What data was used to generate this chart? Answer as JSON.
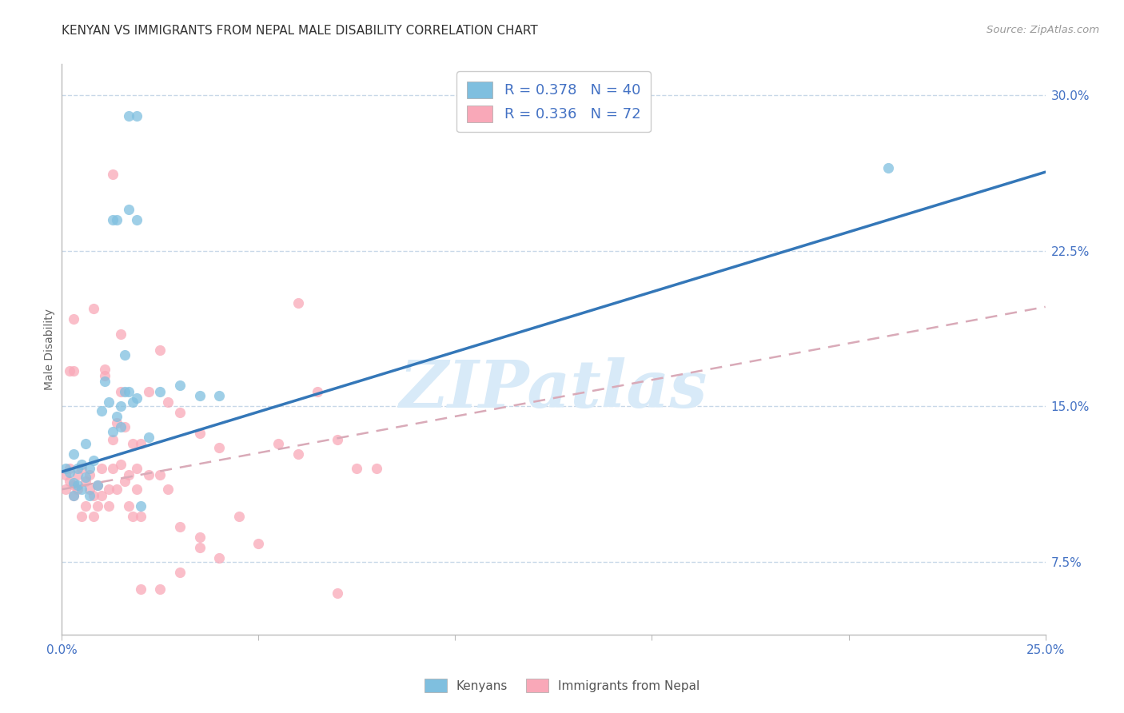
{
  "title": "KENYAN VS IMMIGRANTS FROM NEPAL MALE DISABILITY CORRELATION CHART",
  "source": "Source: ZipAtlas.com",
  "ylabel": "Male Disability",
  "xlim": [
    0.0,
    0.25
  ],
  "ylim": [
    0.04,
    0.315
  ],
  "xtick_vals": [
    0.0,
    0.05,
    0.1,
    0.15,
    0.2,
    0.25
  ],
  "xtick_labels": [
    "0.0%",
    "",
    "",
    "",
    "",
    "25.0%"
  ],
  "ytick_vals": [
    0.075,
    0.15,
    0.225,
    0.3
  ],
  "ytick_labels": [
    "7.5%",
    "15.0%",
    "22.5%",
    "30.0%"
  ],
  "legend_label_kenyan": "R = 0.378   N = 40",
  "legend_label_nepal": "R = 0.336   N = 72",
  "legend_items_bottom": [
    "Kenyans",
    "Immigrants from Nepal"
  ],
  "kenyan_scatter": [
    [
      0.001,
      0.12
    ],
    [
      0.002,
      0.118
    ],
    [
      0.003,
      0.113
    ],
    [
      0.003,
      0.127
    ],
    [
      0.004,
      0.112
    ],
    [
      0.004,
      0.12
    ],
    [
      0.005,
      0.11
    ],
    [
      0.005,
      0.122
    ],
    [
      0.006,
      0.116
    ],
    [
      0.006,
      0.132
    ],
    [
      0.007,
      0.12
    ],
    [
      0.007,
      0.107
    ],
    [
      0.008,
      0.124
    ],
    [
      0.009,
      0.112
    ],
    [
      0.01,
      0.148
    ],
    [
      0.011,
      0.162
    ],
    [
      0.012,
      0.152
    ],
    [
      0.013,
      0.138
    ],
    [
      0.014,
      0.145
    ],
    [
      0.015,
      0.15
    ],
    [
      0.016,
      0.157
    ],
    [
      0.017,
      0.157
    ],
    [
      0.018,
      0.152
    ],
    [
      0.019,
      0.154
    ],
    [
      0.02,
      0.102
    ],
    [
      0.025,
      0.157
    ],
    [
      0.03,
      0.16
    ],
    [
      0.035,
      0.155
    ],
    [
      0.04,
      0.155
    ],
    [
      0.017,
      0.245
    ],
    [
      0.019,
      0.24
    ],
    [
      0.016,
      0.175
    ],
    [
      0.013,
      0.24
    ],
    [
      0.014,
      0.24
    ],
    [
      0.015,
      0.14
    ],
    [
      0.022,
      0.135
    ],
    [
      0.017,
      0.29
    ],
    [
      0.019,
      0.29
    ],
    [
      0.21,
      0.265
    ],
    [
      0.003,
      0.107
    ]
  ],
  "nepal_scatter": [
    [
      0.001,
      0.11
    ],
    [
      0.001,
      0.117
    ],
    [
      0.002,
      0.114
    ],
    [
      0.002,
      0.12
    ],
    [
      0.003,
      0.107
    ],
    [
      0.003,
      0.112
    ],
    [
      0.004,
      0.11
    ],
    [
      0.004,
      0.117
    ],
    [
      0.005,
      0.12
    ],
    [
      0.005,
      0.097
    ],
    [
      0.006,
      0.102
    ],
    [
      0.006,
      0.114
    ],
    [
      0.007,
      0.11
    ],
    [
      0.007,
      0.117
    ],
    [
      0.008,
      0.097
    ],
    [
      0.008,
      0.107
    ],
    [
      0.009,
      0.102
    ],
    [
      0.009,
      0.112
    ],
    [
      0.01,
      0.12
    ],
    [
      0.01,
      0.107
    ],
    [
      0.011,
      0.165
    ],
    [
      0.011,
      0.168
    ],
    [
      0.012,
      0.11
    ],
    [
      0.012,
      0.102
    ],
    [
      0.013,
      0.134
    ],
    [
      0.013,
      0.12
    ],
    [
      0.014,
      0.142
    ],
    [
      0.014,
      0.11
    ],
    [
      0.015,
      0.157
    ],
    [
      0.015,
      0.122
    ],
    [
      0.016,
      0.14
    ],
    [
      0.016,
      0.114
    ],
    [
      0.017,
      0.117
    ],
    [
      0.017,
      0.102
    ],
    [
      0.018,
      0.132
    ],
    [
      0.018,
      0.097
    ],
    [
      0.019,
      0.12
    ],
    [
      0.019,
      0.11
    ],
    [
      0.02,
      0.132
    ],
    [
      0.02,
      0.097
    ],
    [
      0.022,
      0.157
    ],
    [
      0.022,
      0.117
    ],
    [
      0.025,
      0.177
    ],
    [
      0.025,
      0.117
    ],
    [
      0.027,
      0.152
    ],
    [
      0.027,
      0.11
    ],
    [
      0.03,
      0.147
    ],
    [
      0.03,
      0.092
    ],
    [
      0.035,
      0.137
    ],
    [
      0.035,
      0.082
    ],
    [
      0.04,
      0.13
    ],
    [
      0.04,
      0.077
    ],
    [
      0.045,
      0.097
    ],
    [
      0.05,
      0.084
    ],
    [
      0.055,
      0.132
    ],
    [
      0.06,
      0.127
    ],
    [
      0.065,
      0.157
    ],
    [
      0.07,
      0.134
    ],
    [
      0.075,
      0.12
    ],
    [
      0.08,
      0.12
    ],
    [
      0.013,
      0.262
    ],
    [
      0.015,
      0.185
    ],
    [
      0.02,
      0.062
    ],
    [
      0.025,
      0.062
    ],
    [
      0.03,
      0.07
    ],
    [
      0.035,
      0.087
    ],
    [
      0.06,
      0.2
    ],
    [
      0.003,
      0.192
    ],
    [
      0.008,
      0.197
    ],
    [
      0.002,
      0.167
    ],
    [
      0.003,
      0.167
    ],
    [
      0.07,
      0.06
    ]
  ],
  "kenyan_line": [
    [
      0.0,
      0.1185
    ],
    [
      0.25,
      0.263
    ]
  ],
  "nepal_line": [
    [
      0.0,
      0.11
    ],
    [
      0.25,
      0.198
    ]
  ],
  "scatter_color_kenyan": "#7fbfdf",
  "scatter_color_nepal": "#f9a8b8",
  "line_color_kenyan": "#3477b8",
  "line_color_nepal": "#d9aab8",
  "axis_color": "#4472c4",
  "grid_color": "#c8d8e8",
  "background_color": "#ffffff",
  "watermark": "ZIPatlas",
  "watermark_color": "#d8eaf8"
}
